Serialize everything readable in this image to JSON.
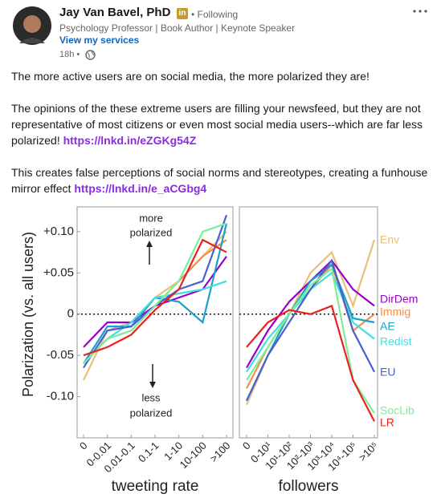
{
  "post": {
    "author": "Jay Van Bavel, PhD",
    "badge": "in",
    "following": "• Following",
    "headline": "Psychology Professor | Book Author | Keynote Speaker",
    "services": "View my services",
    "time": "18h •",
    "paragraphs": [
      {
        "text": "The more active users are on social media, the more polarized they are!"
      },
      {
        "text": "The opinions of the these extreme users are filling your newsfeed, but they are not representative of most citizens or even most social media users--which are far less polarized! ",
        "link": "https://lnkd.in/eZGKg54Z"
      },
      {
        "text": "This creates false perceptions of social norms and stereotypes, creating a funhouse mirror effect ",
        "link": "https://lnkd.in/e_aCGbg4"
      }
    ]
  },
  "chart_data": [
    {
      "type": "line",
      "y_label": "Polarization (vs. all users)",
      "x_label": "tweeting rate",
      "categories": [
        "0",
        "0-0.01",
        "0.01-0.1",
        "0.1-1",
        "1-10",
        "10-100",
        ">100"
      ],
      "ylim": [
        -0.15,
        0.13
      ],
      "yticks": [
        {
          "value": 0.1,
          "label": "+0.10"
        },
        {
          "value": 0.05,
          "label": "+0.05"
        },
        0,
        -0.05,
        {
          "value": -0.1,
          "label": "-0.10"
        }
      ],
      "annotations": [
        {
          "lines": [
            "more",
            "polarized"
          ]
        },
        {
          "lines": [
            "less",
            "polarized"
          ]
        }
      ],
      "series": [
        {
          "color": "#e8c07a",
          "values": [
            -0.08,
            -0.02,
            -0.01,
            0.02,
            0.04,
            0.07,
            0.1
          ]
        },
        {
          "color": "#9900cc",
          "values": [
            -0.04,
            -0.01,
            -0.01,
            0.01,
            0.02,
            0.03,
            0.07
          ]
        },
        {
          "color": "#f0904a",
          "values": [
            -0.06,
            -0.03,
            -0.02,
            0.01,
            0.04,
            0.07,
            0.09
          ]
        },
        {
          "color": "#1aa0c8",
          "values": [
            -0.06,
            -0.015,
            -0.015,
            0.02,
            0.015,
            -0.01,
            0.11
          ]
        },
        {
          "color": "#40e0e0",
          "values": [
            -0.06,
            -0.03,
            -0.01,
            0.02,
            0.025,
            0.03,
            0.04
          ]
        },
        {
          "color": "#4a5fd0",
          "values": [
            -0.065,
            -0.02,
            -0.015,
            0.01,
            0.03,
            0.04,
            0.12
          ]
        },
        {
          "color": "#7dee9a",
          "values": [
            -0.06,
            -0.03,
            -0.02,
            0.01,
            0.04,
            0.1,
            0.11
          ]
        },
        {
          "color": "#e8221e",
          "values": [
            -0.05,
            -0.04,
            -0.025,
            0.005,
            0.03,
            0.09,
            0.075
          ]
        }
      ]
    },
    {
      "type": "line",
      "x_label": "followers",
      "categories": [
        "0",
        "0-10¹",
        "10¹-10²",
        "10²-10³",
        "10³-10⁴",
        "10⁴-10⁵",
        ">10⁵"
      ],
      "ylim": [
        -0.15,
        0.13
      ],
      "series": [
        {
          "name": "Env",
          "color": "#e8c07a",
          "values": [
            -0.11,
            -0.05,
            0,
            0.05,
            0.075,
            0.01,
            0.09
          ]
        },
        {
          "name": "DirDem",
          "color": "#9900cc",
          "values": [
            -0.065,
            -0.02,
            0.015,
            0.04,
            0.065,
            0.03,
            0.01
          ]
        },
        {
          "name": "Immig",
          "color": "#f0904a",
          "values": [
            -0.09,
            -0.04,
            0,
            0.03,
            0.06,
            -0.02,
            0
          ]
        },
        {
          "name": "AE",
          "color": "#1aa0c8",
          "values": [
            -0.105,
            -0.05,
            0,
            0.04,
            0.06,
            -0.005,
            -0.01
          ]
        },
        {
          "name": "Redist",
          "color": "#40e0e0",
          "values": [
            -0.07,
            -0.03,
            0,
            0.03,
            0.05,
            -0.01,
            -0.03
          ]
        },
        {
          "name": "EU",
          "color": "#4a5fd0",
          "values": [
            -0.105,
            -0.05,
            -0.01,
            0.03,
            0.065,
            -0.02,
            -0.07
          ]
        },
        {
          "name": "SocLib",
          "color": "#7dee9a",
          "values": [
            -0.08,
            -0.04,
            0,
            0.035,
            0.055,
            -0.08,
            -0.12
          ]
        },
        {
          "name": "LR",
          "color": "#e8221e",
          "values": [
            -0.04,
            -0.01,
            0.005,
            0,
            0.01,
            -0.08,
            -0.13
          ]
        }
      ]
    }
  ]
}
